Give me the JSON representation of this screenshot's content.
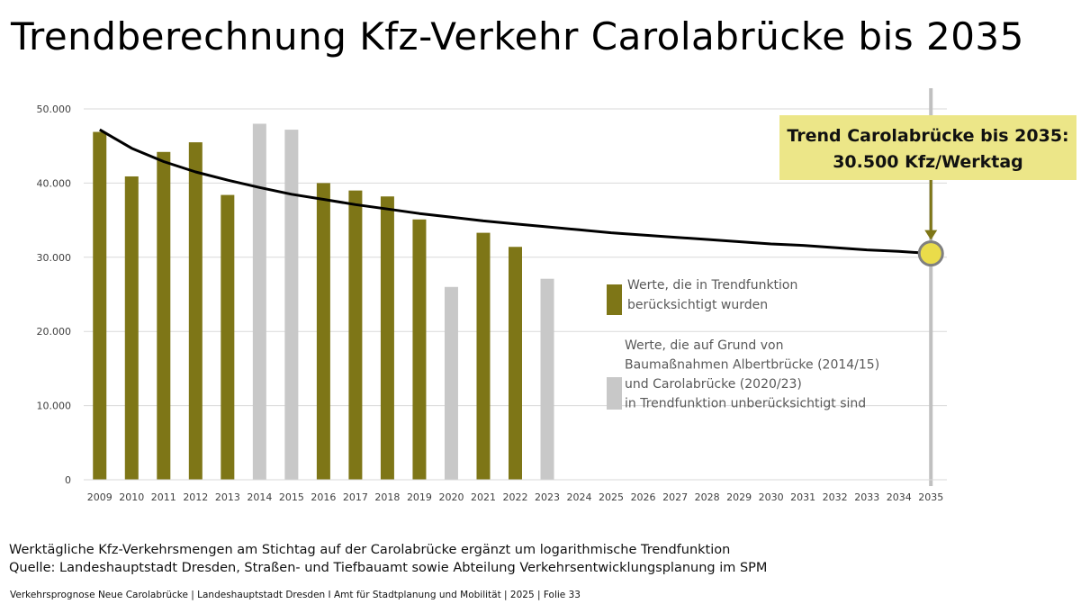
{
  "title": "Trendberechnung Kfz-Verkehr Carolabrücke bis 2035",
  "colors": {
    "included": "#7e7617",
    "excluded": "#c8c8c8",
    "trend": "#000000",
    "callout_bg": "#ece688",
    "marker_fill": "#eadc4a",
    "marker_stroke": "#808080",
    "arrow": "#7e7617",
    "gridline": "#d9d9d9",
    "vline": "#c0c0c0"
  },
  "chart_data": {
    "type": "bar",
    "categories": [
      "2009",
      "2010",
      "2011",
      "2012",
      "2013",
      "2014",
      "2015",
      "2016",
      "2017",
      "2018",
      "2019",
      "2020",
      "2021",
      "2022",
      "2023",
      "2024",
      "2025",
      "2026",
      "2027",
      "2028",
      "2029",
      "2030",
      "2031",
      "2032",
      "2033",
      "2034",
      "2035"
    ],
    "values": [
      46900,
      40900,
      44200,
      45500,
      38400,
      48000,
      47200,
      40000,
      39000,
      38200,
      35100,
      26000,
      33300,
      31400,
      27100,
      null,
      null,
      null,
      null,
      null,
      null,
      null,
      null,
      null,
      null,
      null,
      null
    ],
    "included": [
      true,
      true,
      true,
      true,
      true,
      false,
      false,
      true,
      true,
      true,
      true,
      false,
      true,
      true,
      false,
      null,
      null,
      null,
      null,
      null,
      null,
      null,
      null,
      null,
      null,
      null,
      null
    ],
    "trend": {
      "type": "line",
      "name": "",
      "x": [
        "2009",
        "2010",
        "2011",
        "2012",
        "2013",
        "2014",
        "2015",
        "2016",
        "2017",
        "2018",
        "2019",
        "2020",
        "2021",
        "2022",
        "2023",
        "2024",
        "2025",
        "2026",
        "2027",
        "2028",
        "2029",
        "2030",
        "2031",
        "2032",
        "2033",
        "2034",
        "2035"
      ],
      "values": [
        47200,
        44700,
        42900,
        41500,
        40400,
        39400,
        38500,
        37800,
        37100,
        36500,
        35900,
        35400,
        34900,
        34500,
        34100,
        33700,
        33300,
        33000,
        32700,
        32400,
        32100,
        31800,
        31600,
        31300,
        31000,
        30800,
        30500
      ]
    },
    "ylim": [
      0,
      50000
    ],
    "yticks": [
      "0",
      "10.000",
      "20.000",
      "30.000",
      "40.000",
      "50.000"
    ],
    "ytick_values": [
      0,
      10000,
      20000,
      30000,
      40000,
      50000
    ],
    "grid": true,
    "xlabel": "",
    "ylabel": "",
    "legend": [
      {
        "key": "included",
        "lines": [
          "Werte, die in Trendfunktion",
          "berücksichtigt wurden"
        ]
      },
      {
        "key": "excluded",
        "lines": [
          "Werte, die auf Grund von",
          "Baumaßnahmen Albertbrücke (2014/15)",
          "und Carolabrücke (2020/23)",
          "in Trendfunktion unberücksichtigt sind"
        ]
      }
    ],
    "legend_position": "right",
    "annotation": {
      "lines": [
        "Trend Carolabrücke bis 2035:",
        "30.500 Kfz/Werktag"
      ],
      "x": "2035",
      "value": 30500
    }
  },
  "notes": [
    "Werktägliche Kfz-Verkehrsmengen am Stichtag auf der Carolabrücke ergänzt um logarithmische Trendfunktion",
    "Quelle: Landeshauptstadt Dresden, Straßen- und Tiefbauamt sowie Abteilung Verkehrsentwicklungsplanung im SPM"
  ],
  "footer": "Verkehrsprognose Neue Carolabrücke | Landeshauptstadt Dresden I Amt für Stadtplanung und Mobilität | 2025 | Folie 33"
}
